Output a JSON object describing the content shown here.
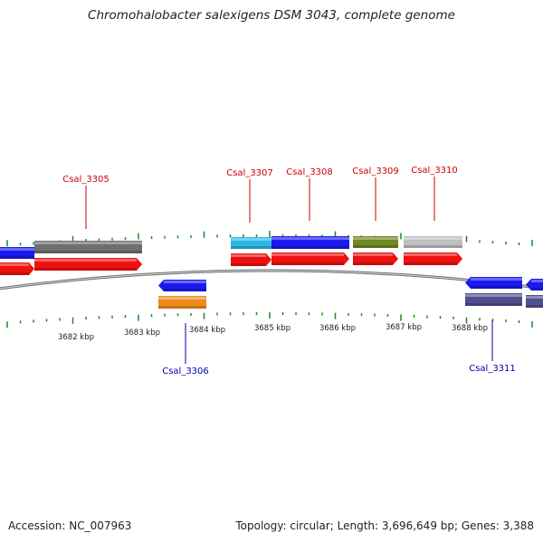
{
  "title": "Chromohalobacter salexigens DSM 3043, complete genome",
  "accession": "Accession: NC_007963",
  "summary": "Topology: circular; Length: 3,696,649 bp; Genes: 3,388",
  "colors": {
    "forward_cds": "#ee1111",
    "blue": "#1a1aee",
    "gray": "#6e6e6e",
    "cyan": "#2bb8e8",
    "olive": "#6e8a22",
    "light_gray": "#bfbfbf",
    "orange": "#ee8a1a",
    "slate": "#4f4f8f",
    "tick_green": "#1a8a1a",
    "label_red": "#cc0000",
    "label_blue": "#0000aa"
  },
  "scale_labels": [
    "3682 kbp",
    "3683 kbp",
    "3684 kbp",
    "3685 kbp",
    "3686 kbp",
    "3687 kbp",
    "3688 kbp"
  ],
  "gene_labels": [
    {
      "name": "Csal_3305",
      "strand": "forward"
    },
    {
      "name": "Csal_3306",
      "strand": "reverse"
    },
    {
      "name": "Csal_3307",
      "strand": "forward"
    },
    {
      "name": "Csal_3308",
      "strand": "forward"
    },
    {
      "name": "Csal_3309",
      "strand": "forward"
    },
    {
      "name": "Csal_3310",
      "strand": "forward"
    },
    {
      "name": "Csal_3311",
      "strand": "reverse"
    }
  ]
}
